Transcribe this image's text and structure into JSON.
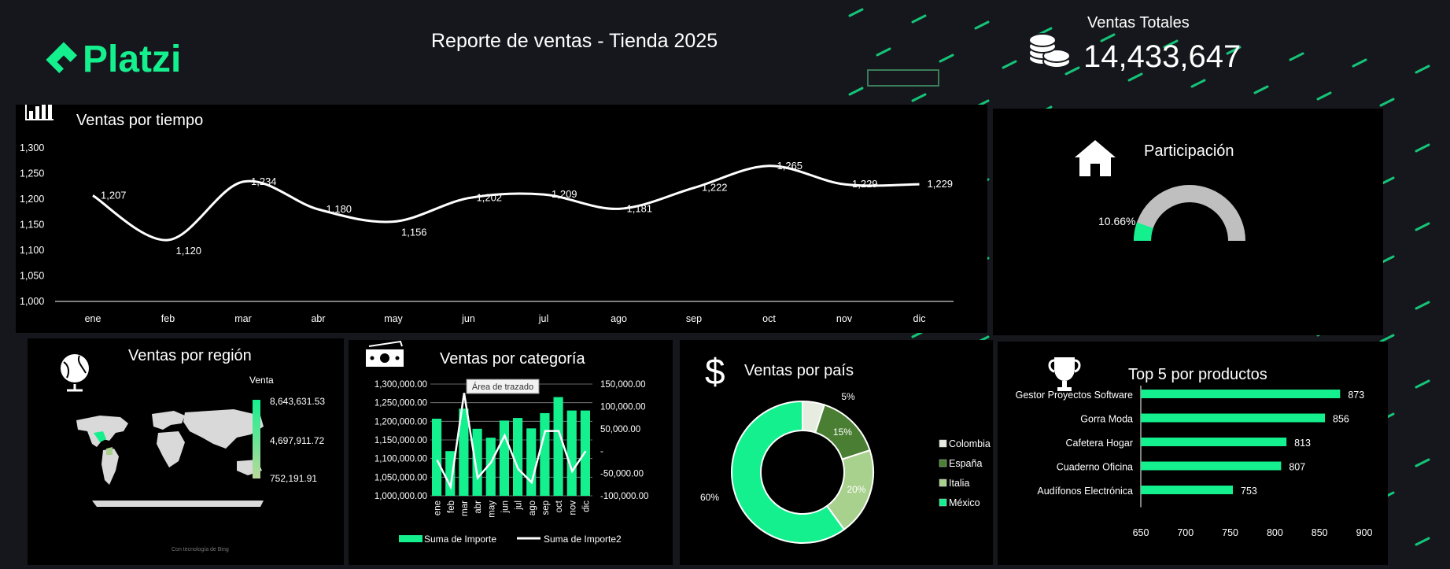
{
  "header": {
    "brand": "Platzi",
    "report_title": "Reporte de ventas - Tienda 2025",
    "kpi_label": "Ventas Totales",
    "kpi_value": "14,433,647"
  },
  "colors": {
    "accent": "#15f08f",
    "background": "#15171c",
    "panel": "#000000"
  },
  "panels": {
    "time": {
      "title": "Ventas por tiempo",
      "icon": "bar-chart-icon"
    },
    "share": {
      "title": "Participación",
      "icon": "home-icon",
      "percent_label": "10.66%"
    },
    "region": {
      "title": "Ventas por región",
      "icon": "globe-icon",
      "legend_title": "Venta",
      "legend_max": "8,643,631.53",
      "legend_mid": "4,697,911.72",
      "legend_min": "752,191.91",
      "credit": "Con tecnología de Bing"
    },
    "category": {
      "title": "Ventas por categoría",
      "icon": "money-icon",
      "tooltip": "Área de trazado",
      "legend_bar": "Suma de Importe",
      "legend_line": "Suma de Importe2"
    },
    "country": {
      "title": "Ventas por país",
      "icon": "dollar-icon",
      "legend": [
        "Colombia",
        "España",
        "Italia",
        "México"
      ]
    },
    "top": {
      "title": "Top 5 por productos",
      "icon": "trophy-icon"
    }
  },
  "chart_data": [
    {
      "type": "line",
      "title": "Ventas por tiempo",
      "categories": [
        "ene",
        "feb",
        "mar",
        "abr",
        "may",
        "jun",
        "jul",
        "ago",
        "sep",
        "oct",
        "nov",
        "dic"
      ],
      "values": [
        1207,
        1120,
        1234,
        1180,
        1156,
        1202,
        1209,
        1181,
        1222,
        1265,
        1229,
        1229
      ],
      "data_labels": [
        "1,207",
        "1,120",
        "1,234",
        "1,180",
        "1,156",
        "1,202",
        "1,209",
        "1,181",
        "1,222",
        "1,265",
        "1,229",
        "1,229"
      ],
      "ylim": [
        1000,
        1300
      ],
      "yticks": [
        "1,000",
        "1,050",
        "1,100",
        "1,150",
        "1,200",
        "1,250",
        "1,300"
      ],
      "grid": false
    },
    {
      "type": "pie",
      "title": "Participación",
      "values": [
        10.66,
        89.34
      ],
      "label": "10.66%"
    },
    {
      "type": "bar",
      "title": "Ventas por categoría",
      "categories": [
        "ene",
        "feb",
        "mar",
        "abr",
        "may",
        "jun",
        "jul",
        "ago",
        "sep",
        "oct",
        "nov",
        "dic"
      ],
      "series": [
        {
          "name": "Suma de Importe",
          "values": [
            1207000,
            1120000,
            1234000,
            1180000,
            1156000,
            1202000,
            1209000,
            1181000,
            1222000,
            1265000,
            1229000,
            1229000
          ]
        },
        {
          "name": "Suma de Importe2",
          "values": [
            -20000,
            -80000,
            130000,
            -60000,
            -25000,
            35000,
            -40000,
            -70000,
            45000,
            45000,
            -45000,
            0
          ]
        }
      ],
      "ylim": [
        1000000,
        1300000
      ],
      "y2lim": [
        -100000,
        150000
      ],
      "yticks": [
        "1,000,000.00",
        "1,050,000.00",
        "1,100,000.00",
        "1,150,000.00",
        "1,200,000.00",
        "1,250,000.00",
        "1,300,000.00"
      ],
      "y2ticks": [
        "-100,000.00",
        "-50,000.00",
        "-",
        "50,000.00",
        "100,000.00",
        "150,000.00"
      ],
      "legend": "bottom"
    },
    {
      "type": "pie",
      "title": "Ventas por país",
      "categories": [
        "Colombia",
        "España",
        "Italia",
        "México"
      ],
      "values": [
        5,
        15,
        20,
        60
      ],
      "data_labels": [
        "5%",
        "15%",
        "20%",
        "60%"
      ],
      "colors": [
        "#e6ecdf",
        "#4a7f33",
        "#a9d18e",
        "#15f08f"
      ],
      "legend": "right"
    },
    {
      "type": "bar",
      "title": "Top 5 por productos",
      "categories": [
        "Gestor Proyectos Software",
        "Gorra Moda",
        "Cafetera Hogar",
        "Cuaderno Oficina",
        "Audífonos Electrónica"
      ],
      "values": [
        873,
        856,
        813,
        807,
        753
      ],
      "xlim": [
        650,
        900
      ],
      "xticks": [
        "650",
        "700",
        "750",
        "800",
        "850",
        "900"
      ]
    }
  ]
}
